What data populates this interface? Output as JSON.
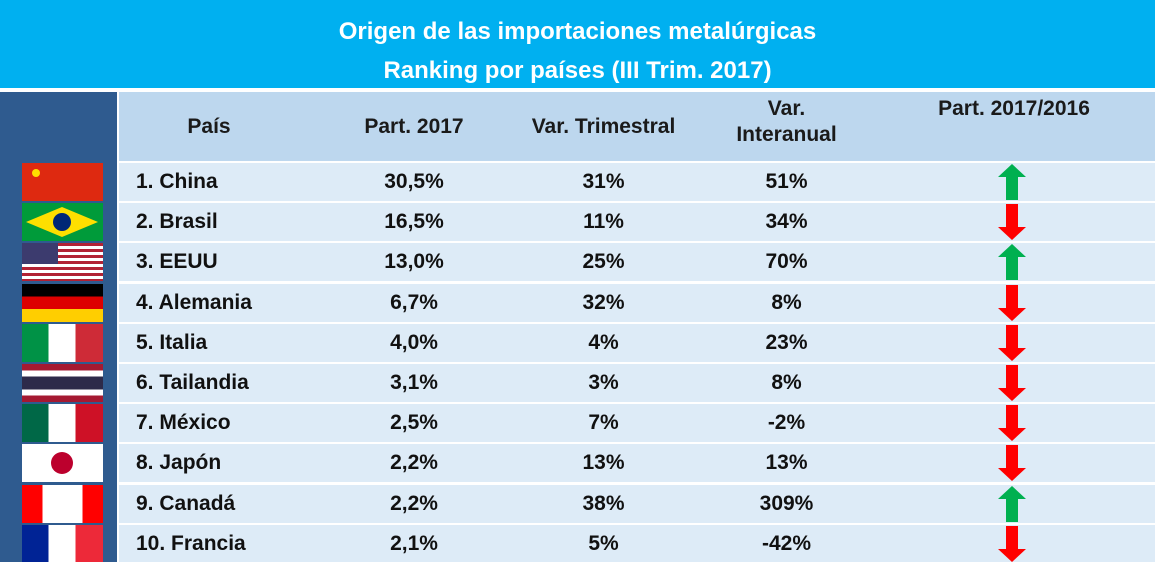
{
  "title": [
    "Origen de las importaciones metalúrgicas",
    "Ranking por países (III Trim. 2017)"
  ],
  "table": {
    "header": [
      "País",
      "Part. 2017",
      "Var. Trimestral",
      "Var.\nInteranual",
      "Part. 2017/2016"
    ],
    "rows": [
      [
        "1. China",
        "30,5%",
        "31%",
        "51%",
        "up"
      ],
      [
        "2. Brasil",
        "16,5%",
        "11%",
        "34%",
        "down"
      ],
      [
        "3. EEUU",
        "13,0%",
        "25%",
        "70%",
        "up"
      ],
      [
        "4. Alemania",
        "6,7%",
        "32%",
        "8%",
        "down"
      ],
      [
        "5. Italia",
        "4,0%",
        "4%",
        "23%",
        "down"
      ],
      [
        "6. Tailandia",
        "3,1%",
        "3%",
        "8%",
        "down"
      ],
      [
        "7. México",
        "2,5%",
        "7%",
        "-2%",
        "down"
      ],
      [
        "8. Japón",
        "2,2%",
        "13%",
        "13%",
        "down"
      ],
      [
        "9. Canadá",
        "2,2%",
        "38%",
        "309%",
        "up"
      ],
      [
        "10. Francia",
        "2,1%",
        "5%",
        "-42%",
        "down"
      ]
    ]
  }
}
